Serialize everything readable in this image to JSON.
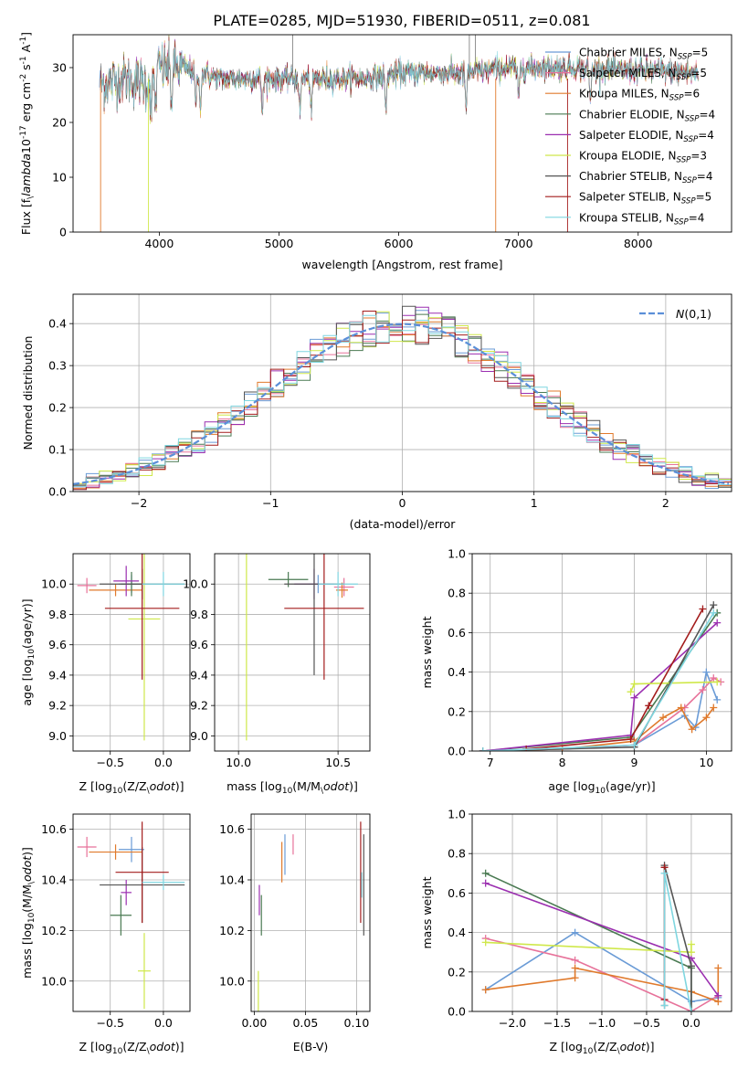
{
  "figure_title": "PLATE=0285, MJD=51930, FIBERID=0511, z=0.081",
  "colors": {
    "Chabrier MILES": "#6a9bd6",
    "Salpeter MILES": "#e7729a",
    "Kroupa MILES": "#e07a2c",
    "Chabrier ELODIE": "#4a7a52",
    "Salpeter ELODIE": "#9b2fb0",
    "Kroupa ELODIE": "#cfe84a",
    "Chabrier STELIB": "#555555",
    "Salpeter STELIB": "#a31c1c",
    "Kroupa STELIB": "#7fd6e0",
    "normal_curve": "#5b8fd8"
  },
  "chart_data": [
    {
      "id": "spectrum",
      "type": "line",
      "xlabel": "wavelength [Angstrom, rest frame]",
      "ylabel": "Flux [f$_\\lambda$10$^{-17}$ erg cm$^{-2}$ s$^{-1}$ A$^{-1}$]",
      "xlim": [
        3280,
        8780
      ],
      "ylim": [
        0,
        36
      ],
      "xticks": [
        4000,
        5000,
        6000,
        7000,
        8000
      ],
      "yticks": [
        0,
        10,
        20,
        30
      ],
      "legend_position": "top-right",
      "series": [
        {
          "name": "Chabrier MILES, N$_{SSP}$=5"
        },
        {
          "name": "Salpeter MILES, N$_{SSP}$=5"
        },
        {
          "name": "Kroupa MILES, N$_{SSP}$=6"
        },
        {
          "name": "Chabrier ELODIE, N$_{SSP}$=4"
        },
        {
          "name": "Salpeter ELODIE, N$_{SSP}$=4"
        },
        {
          "name": "Kroupa ELODIE, N$_{SSP}$=3"
        },
        {
          "name": "Chabrier STELIB, N$_{SSP}$=4"
        },
        {
          "name": "Salpeter STELIB, N$_{SSP}$=5"
        },
        {
          "name": "Kroupa STELIB, N$_{SSP}$=4"
        }
      ],
      "continuum": [
        [
          3500,
          27
        ],
        [
          3700,
          28
        ],
        [
          3900,
          27
        ],
        [
          4000,
          30
        ],
        [
          4200,
          30
        ],
        [
          4500,
          28
        ],
        [
          4800,
          28
        ],
        [
          5100,
          28
        ],
        [
          5400,
          28
        ],
        [
          5700,
          28
        ],
        [
          6000,
          29
        ],
        [
          6300,
          29
        ],
        [
          6600,
          29
        ],
        [
          6900,
          30
        ],
        [
          7200,
          30
        ],
        [
          7500,
          30
        ],
        [
          7800,
          29.5
        ],
        [
          8100,
          29.5
        ],
        [
          8500,
          29
        ]
      ]
    },
    {
      "id": "residuals",
      "type": "step",
      "xlabel": "(data-model)/error",
      "ylabel": "Normed distribution",
      "xlim": [
        -2.5,
        2.5
      ],
      "ylim": [
        0,
        0.47
      ],
      "xticks": [
        -2,
        -1,
        0,
        1,
        2
      ],
      "yticks": [
        0.0,
        0.1,
        0.2,
        0.3,
        0.4
      ],
      "grid": true,
      "legend": "$\\mathcal{N}(0,1)$",
      "legend_position": "top-right",
      "bin_width": 0.1
    },
    {
      "id": "age_vs_Z",
      "type": "errorbar",
      "xlabel": "Z [log$_{10}$(Z/Z$_\\odot$)]",
      "ylabel": "age  [log$_{10}$(age/yr)]",
      "xlim": [
        -0.85,
        0.25
      ],
      "ylim": [
        8.9,
        10.2
      ],
      "xticks": [
        -0.5,
        0.0
      ],
      "yticks": [
        9.0,
        9.2,
        9.4,
        9.6,
        9.8,
        10.0
      ],
      "grid": true,
      "points": [
        {
          "s": "Chabrier MILES",
          "x": -0.3,
          "y": 10.0,
          "xerr": 0.12,
          "yerr": 0.06
        },
        {
          "s": "Salpeter MILES",
          "x": -0.72,
          "y": 9.99,
          "xerr": 0.09,
          "yerr": 0.05
        },
        {
          "s": "Kroupa MILES",
          "x": -0.45,
          "y": 9.96,
          "xerr": 0.25,
          "yerr": 0.04
        },
        {
          "s": "Chabrier ELODIE",
          "x": -0.3,
          "y": 10.0,
          "xerr": 0.1,
          "yerr": 0.08
        },
        {
          "s": "Salpeter ELODIE",
          "x": -0.35,
          "y": 10.02,
          "xerr": 0.12,
          "yerr": 0.1
        },
        {
          "s": "Kroupa ELODIE",
          "x": -0.18,
          "y": 9.77,
          "xerr": 0.15,
          "yerr": 0.8
        },
        {
          "s": "Chabrier STELIB",
          "x": -0.2,
          "y": 10.0,
          "xerr": 0.4,
          "yerr": 0.1
        },
        {
          "s": "Salpeter STELIB",
          "x": -0.2,
          "y": 9.84,
          "xerr": 0.35,
          "yerr": 0.47
        },
        {
          "s": "Kroupa STELIB",
          "x": 0.0,
          "y": 10.0,
          "xerr": 0.2,
          "yerr": 0.08
        }
      ]
    },
    {
      "id": "age_vs_mass",
      "type": "errorbar",
      "xlabel": "mass [log$_{10}$(M/M$_\\odot$)]",
      "ylabel": "",
      "xlim": [
        9.88,
        10.66
      ],
      "ylim": [
        8.9,
        10.2
      ],
      "xticks": [
        10.0,
        10.5
      ],
      "yticks": [
        9.0,
        9.2,
        9.4,
        9.6,
        9.8,
        10.0
      ],
      "grid": true,
      "points": [
        {
          "s": "Chabrier MILES",
          "x": 10.4,
          "y": 10.0,
          "xerr": 0.05,
          "yerr": 0.06
        },
        {
          "s": "Salpeter MILES",
          "x": 10.53,
          "y": 9.98,
          "xerr": 0.05,
          "yerr": 0.06
        },
        {
          "s": "Kroupa MILES",
          "x": 10.52,
          "y": 9.96,
          "xerr": 0.03,
          "yerr": 0.05
        },
        {
          "s": "Chabrier ELODIE",
          "x": 10.25,
          "y": 10.03,
          "xerr": 0.1,
          "yerr": 0.05
        },
        {
          "s": "Salpeter ELODIE",
          "x": 10.38,
          "y": 10.0,
          "xerr": 0.1,
          "yerr": 0.1
        },
        {
          "s": "Kroupa ELODIE",
          "x": 10.04,
          "y": 9.77,
          "xerr": 0.0,
          "yerr": 0.8
        },
        {
          "s": "Chabrier STELIB",
          "x": 10.38,
          "y": 10.0,
          "xerr": 0.15,
          "yerr": 0.6
        },
        {
          "s": "Salpeter STELIB",
          "x": 10.43,
          "y": 9.84,
          "xerr": 0.2,
          "yerr": 0.47
        },
        {
          "s": "Kroupa STELIB",
          "x": 10.5,
          "y": 10.0,
          "xerr": 0.1,
          "yerr": 0.08
        }
      ]
    },
    {
      "id": "mass_weight_vs_age",
      "type": "line",
      "xlabel": "age  [log$_{10}$(age/yr)]",
      "ylabel": "mass weight",
      "xlim": [
        6.75,
        10.35
      ],
      "ylim": [
        0,
        1
      ],
      "xticks": [
        7,
        8,
        9,
        10
      ],
      "yticks": [
        0.0,
        0.2,
        0.4,
        0.6,
        0.8,
        1.0
      ],
      "grid": true,
      "series": [
        {
          "s": "Chabrier MILES",
          "x": [
            6.9,
            8.0,
            9.0,
            9.7,
            9.85,
            10.0,
            10.15
          ],
          "y": [
            0.0,
            0.01,
            0.03,
            0.18,
            0.12,
            0.4,
            0.26
          ]
        },
        {
          "s": "Salpeter MILES",
          "x": [
            6.9,
            8.0,
            9.0,
            9.7,
            9.95,
            10.1,
            10.2
          ],
          "y": [
            0.0,
            0.01,
            0.03,
            0.22,
            0.31,
            0.37,
            0.35
          ]
        },
        {
          "s": "Kroupa MILES",
          "x": [
            6.9,
            8.0,
            9.0,
            9.4,
            9.65,
            9.8,
            10.0,
            10.1
          ],
          "y": [
            0.0,
            0.01,
            0.05,
            0.17,
            0.22,
            0.11,
            0.17,
            0.22
          ]
        },
        {
          "s": "Chabrier ELODIE",
          "x": [
            6.9,
            8.95,
            10.15
          ],
          "y": [
            0.0,
            0.07,
            0.7
          ]
        },
        {
          "s": "Salpeter ELODIE",
          "x": [
            6.9,
            8.95,
            9.0,
            10.15
          ],
          "y": [
            0.0,
            0.08,
            0.27,
            0.65
          ]
        },
        {
          "s": "Kroupa ELODIE",
          "x": [
            8.95,
            9.0,
            10.15
          ],
          "y": [
            0.3,
            0.34,
            0.35
          ]
        },
        {
          "s": "Chabrier STELIB",
          "x": [
            6.9,
            9.0,
            10.1
          ],
          "y": [
            0.0,
            0.02,
            0.74
          ]
        },
        {
          "s": "Salpeter STELIB",
          "x": [
            7.5,
            8.95,
            9.2,
            9.95
          ],
          "y": [
            0.01,
            0.06,
            0.23,
            0.72
          ]
        },
        {
          "s": "Kroupa STELIB",
          "x": [
            6.9,
            9.0,
            10.1
          ],
          "y": [
            0.0,
            0.03,
            0.7
          ]
        }
      ]
    },
    {
      "id": "mass_vs_Z",
      "type": "errorbar",
      "xlabel": "Z [log$_{10}$(Z/Z$_\\odot$)]",
      "ylabel": "mass [log$_{10}$(M/M$_\\odot$)]",
      "xlim": [
        -0.85,
        0.25
      ],
      "ylim": [
        9.88,
        10.66
      ],
      "xticks": [
        -0.5,
        0.0
      ],
      "yticks": [
        10.0,
        10.2,
        10.4,
        10.6
      ],
      "grid": true,
      "points": [
        {
          "s": "Chabrier MILES",
          "x": -0.3,
          "y": 10.52,
          "xerr": 0.12,
          "yerr": 0.05
        },
        {
          "s": "Salpeter MILES",
          "x": -0.72,
          "y": 10.53,
          "xerr": 0.09,
          "yerr": 0.04
        },
        {
          "s": "Kroupa MILES",
          "x": -0.45,
          "y": 10.51,
          "xerr": 0.25,
          "yerr": 0.03
        },
        {
          "s": "Chabrier ELODIE",
          "x": -0.4,
          "y": 10.26,
          "xerr": 0.1,
          "yerr": 0.08
        },
        {
          "s": "Salpeter ELODIE",
          "x": -0.35,
          "y": 10.35,
          "xerr": 0.05,
          "yerr": 0.05
        },
        {
          "s": "Kroupa ELODIE",
          "x": -0.18,
          "y": 10.04,
          "xerr": 0.06,
          "yerr": 0.15
        },
        {
          "s": "Chabrier STELIB",
          "x": -0.2,
          "y": 10.38,
          "xerr": 0.4,
          "yerr": 0.15
        },
        {
          "s": "Salpeter STELIB",
          "x": -0.2,
          "y": 10.43,
          "xerr": 0.25,
          "yerr": 0.2
        },
        {
          "s": "Kroupa STELIB",
          "x": 0.0,
          "y": 10.39,
          "xerr": 0.2,
          "yerr": 0.03
        }
      ]
    },
    {
      "id": "mass_vs_ebv",
      "type": "errorbar",
      "xlabel": "E(B-V)",
      "ylabel": "",
      "xlim": [
        -0.003,
        0.113
      ],
      "ylim": [
        9.88,
        10.66
      ],
      "xticks": [
        0.0,
        0.05,
        0.1
      ],
      "yticks": [
        10.0,
        10.2,
        10.4,
        10.6
      ],
      "grid": true,
      "points": [
        {
          "s": "Chabrier MILES",
          "x": 0.03,
          "y": 10.5,
          "xerr": 0.0,
          "yerr": 0.08
        },
        {
          "s": "Salpeter MILES",
          "x": 0.038,
          "y": 10.54,
          "xerr": 0.0,
          "yerr": 0.04
        },
        {
          "s": "Kroupa MILES",
          "x": 0.027,
          "y": 10.47,
          "xerr": 0.0,
          "yerr": 0.08
        },
        {
          "s": "Chabrier ELODIE",
          "x": 0.007,
          "y": 10.26,
          "xerr": 0.0,
          "yerr": 0.08
        },
        {
          "s": "Salpeter ELODIE",
          "x": 0.005,
          "y": 10.32,
          "xerr": 0.0,
          "yerr": 0.06
        },
        {
          "s": "Kroupa ELODIE",
          "x": 0.004,
          "y": 9.95,
          "xerr": 0.0,
          "yerr": 0.09
        },
        {
          "s": "Chabrier STELIB",
          "x": 0.107,
          "y": 10.38,
          "xerr": 0.0,
          "yerr": 0.2
        },
        {
          "s": "Salpeter STELIB",
          "x": 0.104,
          "y": 10.43,
          "xerr": 0.0,
          "yerr": 0.2
        },
        {
          "s": "Kroupa STELIB",
          "x": 0.105,
          "y": 10.38,
          "xerr": 0.0,
          "yerr": 0.05
        }
      ]
    },
    {
      "id": "mass_weight_vs_Z",
      "type": "line",
      "xlabel": "Z [log$_{10}$(Z/Z$_\\odot$)]",
      "ylabel": "mass weight",
      "xlim": [
        -2.45,
        0.45
      ],
      "ylim": [
        0,
        1
      ],
      "xticks": [
        -2.0,
        -1.5,
        -1.0,
        -0.5,
        0.0
      ],
      "yticks": [
        0.0,
        0.2,
        0.4,
        0.6,
        0.8,
        1.0
      ],
      "grid": true,
      "series": [
        {
          "s": "Chabrier MILES",
          "x": [
            -2.3,
            -1.3,
            0.0,
            0.3
          ],
          "y": [
            0.11,
            0.4,
            0.05,
            0.07
          ]
        },
        {
          "s": "Salpeter MILES",
          "x": [
            -2.3,
            -1.3,
            0.0,
            0.3
          ],
          "y": [
            0.37,
            0.26,
            0.0,
            0.08
          ]
        },
        {
          "s": "Kroupa MILES",
          "x": [
            -2.3,
            -1.3,
            -1.3,
            0.0,
            0.3,
            0.3
          ],
          "y": [
            0.11,
            0.17,
            0.22,
            0.1,
            0.05,
            0.22
          ]
        },
        {
          "s": "Chabrier ELODIE",
          "x": [
            -2.3,
            0.0,
            0.0
          ],
          "y": [
            0.7,
            0.22,
            0.0
          ]
        },
        {
          "s": "Salpeter ELODIE",
          "x": [
            -2.3,
            0.0,
            0.3
          ],
          "y": [
            0.65,
            0.27,
            0.08
          ]
        },
        {
          "s": "Kroupa ELODIE",
          "x": [
            -2.3,
            0.0,
            0.0
          ],
          "y": [
            0.35,
            0.3,
            0.34
          ]
        },
        {
          "s": "Chabrier STELIB",
          "x": [
            -0.3,
            -0.3,
            0.0,
            0.0
          ],
          "y": [
            0.03,
            0.74,
            0.23,
            0.0
          ]
        },
        {
          "s": "Salpeter STELIB",
          "x": [
            -0.3,
            -0.3
          ],
          "y": [
            0.06,
            0.73
          ]
        },
        {
          "s": "Kroupa STELIB",
          "x": [
            -0.3,
            -0.3,
            0.0
          ],
          "y": [
            0.03,
            0.7,
            0.0
          ]
        }
      ]
    }
  ]
}
